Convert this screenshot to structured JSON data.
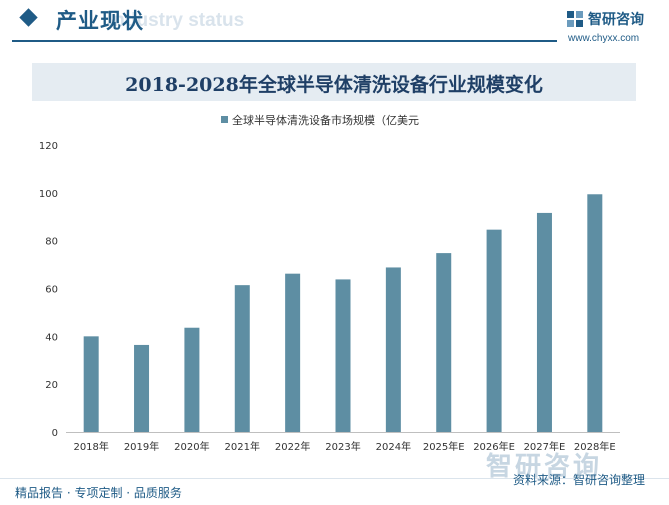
{
  "header": {
    "title": "产业现状",
    "title_en": "Industry status"
  },
  "logo": {
    "name": "智研咨询",
    "url": "www.chyxx.com"
  },
  "watermark_text": "智研咨询",
  "footer": {
    "left": "精品报告 · 专项定制 · 品质服务",
    "brand": "智研咨询",
    "source": "资料来源：智研咨询整理"
  },
  "colors": {
    "accent": "#1f5b86",
    "bar": "#5e8ea3",
    "banner_bg": "#e5ecf2"
  },
  "chart_data": {
    "type": "bar",
    "title": "2018-2028年全球半导体清洗设备行业规模变化",
    "categories": [
      "2018年",
      "2019年",
      "2020年",
      "2021年",
      "2022年",
      "2023年",
      "2024年",
      "2025年E",
      "2026年E",
      "2027年E",
      "2028年E"
    ],
    "series": [
      {
        "name": "全球半导体清洗设备市场规模（亿美元",
        "values": [
          40,
          36.4,
          43.6,
          61.4,
          66.2,
          63.8,
          68.8,
          74.8,
          84.6,
          91.6,
          99.4
        ]
      }
    ],
    "yticks": [
      "0",
      "20",
      "40",
      "60",
      "80",
      "100",
      "120"
    ],
    "ylim": [
      0,
      120
    ],
    "legend_position": "top-center",
    "grid": false
  }
}
